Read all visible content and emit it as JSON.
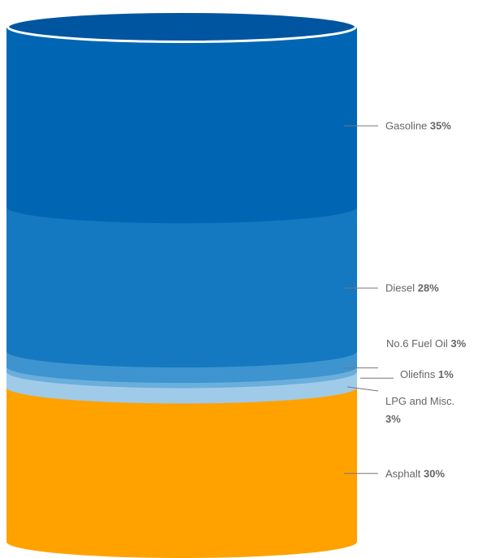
{
  "chart_data": {
    "type": "stacked-cylinder",
    "title": "",
    "segments": [
      {
        "name": "Gasoline",
        "value": 35,
        "label": "35%",
        "color": "#0066b3"
      },
      {
        "name": "Diesel",
        "value": 28,
        "label": "28%",
        "color": "#1479c0"
      },
      {
        "name": "No.6 Fuel Oil",
        "value": 3,
        "label": "3%",
        "color": "#3d94cf"
      },
      {
        "name": "Oliefins",
        "value": 1,
        "label": "1%",
        "color": "#6aaedc"
      },
      {
        "name": "LPG and Misc.",
        "value": 3,
        "label": "3%",
        "color": "#9fcbe9"
      },
      {
        "name": "Asphalt",
        "value": 30,
        "label": "30%",
        "color": "#ffa200"
      }
    ],
    "top_cap_color": "#0055a0",
    "leader_color": "#777777"
  }
}
